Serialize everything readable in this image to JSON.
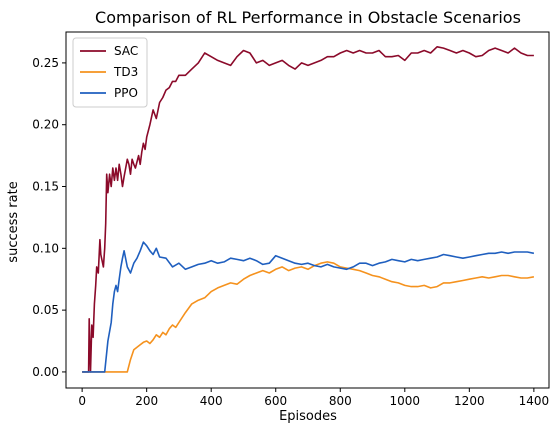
{
  "chart_data": {
    "type": "line",
    "title": "Comparison of RL Performance in Obstacle Scenarios",
    "xlabel": "Episodes",
    "ylabel": "success rate",
    "xlim": [
      -50,
      1450
    ],
    "ylim": [
      -0.013,
      0.275
    ],
    "xticks": [
      0,
      200,
      400,
      600,
      800,
      1000,
      1200,
      1400
    ],
    "xtick_labels": [
      "0",
      "200",
      "400",
      "600",
      "800",
      "1000",
      "1200",
      "1400"
    ],
    "yticks": [
      0.0,
      0.05,
      0.1,
      0.15,
      0.2,
      0.25
    ],
    "ytick_labels": [
      "0.00",
      "0.05",
      "0.10",
      "0.15",
      "0.20",
      "0.25"
    ],
    "grid": false,
    "legend_position": "top-left",
    "series": [
      {
        "name": "SAC",
        "color": "#8b0a2a",
        "x": [
          0,
          20,
          22,
          26,
          30,
          34,
          38,
          42,
          45,
          50,
          55,
          58,
          62,
          66,
          70,
          73,
          76,
          80,
          85,
          90,
          95,
          100,
          105,
          110,
          115,
          120,
          125,
          130,
          135,
          140,
          145,
          150,
          155,
          160,
          165,
          170,
          175,
          180,
          185,
          190,
          195,
          200,
          210,
          220,
          230,
          240,
          250,
          260,
          270,
          280,
          290,
          300,
          320,
          340,
          360,
          380,
          400,
          420,
          440,
          460,
          480,
          500,
          520,
          540,
          560,
          580,
          600,
          620,
          640,
          660,
          680,
          700,
          720,
          740,
          760,
          780,
          800,
          820,
          840,
          860,
          880,
          900,
          920,
          940,
          960,
          980,
          1000,
          1020,
          1040,
          1060,
          1080,
          1100,
          1120,
          1140,
          1160,
          1180,
          1200,
          1220,
          1240,
          1260,
          1280,
          1300,
          1320,
          1340,
          1360,
          1380,
          1400
        ],
        "y": [
          0.0,
          0.0,
          0.043,
          0.0,
          0.038,
          0.028,
          0.055,
          0.07,
          0.085,
          0.08,
          0.107,
          0.095,
          0.09,
          0.085,
          0.1,
          0.12,
          0.16,
          0.145,
          0.16,
          0.15,
          0.165,
          0.155,
          0.165,
          0.155,
          0.168,
          0.16,
          0.15,
          0.158,
          0.165,
          0.172,
          0.168,
          0.16,
          0.172,
          0.168,
          0.165,
          0.17,
          0.175,
          0.168,
          0.178,
          0.185,
          0.18,
          0.19,
          0.2,
          0.212,
          0.205,
          0.218,
          0.222,
          0.228,
          0.23,
          0.235,
          0.235,
          0.24,
          0.24,
          0.245,
          0.25,
          0.258,
          0.255,
          0.252,
          0.25,
          0.248,
          0.255,
          0.26,
          0.258,
          0.25,
          0.252,
          0.248,
          0.25,
          0.252,
          0.248,
          0.245,
          0.25,
          0.248,
          0.25,
          0.252,
          0.255,
          0.255,
          0.258,
          0.26,
          0.258,
          0.26,
          0.258,
          0.258,
          0.26,
          0.255,
          0.255,
          0.256,
          0.252,
          0.258,
          0.258,
          0.26,
          0.258,
          0.263,
          0.262,
          0.26,
          0.258,
          0.26,
          0.258,
          0.255,
          0.256,
          0.26,
          0.262,
          0.26,
          0.258,
          0.262,
          0.258,
          0.256,
          0.256
        ]
      },
      {
        "name": "TD3",
        "color": "#f5921e",
        "x": [
          0,
          140,
          150,
          160,
          170,
          180,
          190,
          200,
          210,
          220,
          230,
          240,
          250,
          260,
          270,
          280,
          290,
          300,
          320,
          340,
          360,
          380,
          400,
          420,
          440,
          460,
          480,
          500,
          520,
          540,
          560,
          580,
          600,
          620,
          640,
          660,
          680,
          700,
          720,
          740,
          760,
          780,
          800,
          820,
          840,
          860,
          880,
          900,
          920,
          940,
          960,
          980,
          1000,
          1020,
          1040,
          1060,
          1080,
          1100,
          1120,
          1140,
          1160,
          1180,
          1200,
          1220,
          1240,
          1260,
          1280,
          1300,
          1320,
          1340,
          1360,
          1380,
          1400
        ],
        "y": [
          0.0,
          0.0,
          0.01,
          0.018,
          0.02,
          0.022,
          0.024,
          0.025,
          0.023,
          0.026,
          0.03,
          0.028,
          0.032,
          0.03,
          0.035,
          0.038,
          0.036,
          0.04,
          0.048,
          0.055,
          0.058,
          0.06,
          0.065,
          0.068,
          0.07,
          0.072,
          0.071,
          0.075,
          0.078,
          0.08,
          0.082,
          0.08,
          0.083,
          0.085,
          0.082,
          0.084,
          0.085,
          0.083,
          0.086,
          0.088,
          0.089,
          0.088,
          0.085,
          0.084,
          0.083,
          0.082,
          0.08,
          0.078,
          0.077,
          0.075,
          0.073,
          0.072,
          0.07,
          0.069,
          0.069,
          0.07,
          0.068,
          0.069,
          0.072,
          0.072,
          0.073,
          0.074,
          0.075,
          0.076,
          0.077,
          0.076,
          0.077,
          0.078,
          0.078,
          0.077,
          0.076,
          0.076,
          0.077
        ]
      },
      {
        "name": "PPO",
        "color": "#1f5fbf",
        "x": [
          0,
          70,
          80,
          90,
          95,
          100,
          105,
          110,
          115,
          120,
          125,
          130,
          140,
          150,
          160,
          170,
          180,
          190,
          200,
          210,
          220,
          230,
          240,
          260,
          280,
          300,
          320,
          340,
          360,
          380,
          400,
          420,
          440,
          460,
          480,
          500,
          520,
          540,
          560,
          580,
          600,
          620,
          640,
          660,
          680,
          700,
          720,
          740,
          760,
          780,
          800,
          820,
          840,
          860,
          880,
          900,
          920,
          940,
          960,
          980,
          1000,
          1020,
          1040,
          1060,
          1080,
          1100,
          1120,
          1140,
          1160,
          1180,
          1200,
          1220,
          1240,
          1260,
          1280,
          1300,
          1320,
          1340,
          1360,
          1380,
          1400
        ],
        "y": [
          0.0,
          0.0,
          0.025,
          0.04,
          0.055,
          0.065,
          0.07,
          0.065,
          0.075,
          0.085,
          0.092,
          0.098,
          0.085,
          0.08,
          0.088,
          0.092,
          0.098,
          0.105,
          0.102,
          0.098,
          0.095,
          0.1,
          0.093,
          0.092,
          0.085,
          0.088,
          0.083,
          0.085,
          0.087,
          0.088,
          0.09,
          0.088,
          0.089,
          0.092,
          0.091,
          0.09,
          0.092,
          0.09,
          0.087,
          0.088,
          0.094,
          0.092,
          0.09,
          0.088,
          0.087,
          0.088,
          0.086,
          0.085,
          0.087,
          0.085,
          0.084,
          0.083,
          0.085,
          0.088,
          0.088,
          0.086,
          0.088,
          0.089,
          0.091,
          0.09,
          0.089,
          0.091,
          0.09,
          0.091,
          0.092,
          0.093,
          0.095,
          0.094,
          0.093,
          0.092,
          0.093,
          0.094,
          0.095,
          0.096,
          0.096,
          0.097,
          0.096,
          0.097,
          0.097,
          0.097,
          0.096
        ]
      }
    ]
  }
}
